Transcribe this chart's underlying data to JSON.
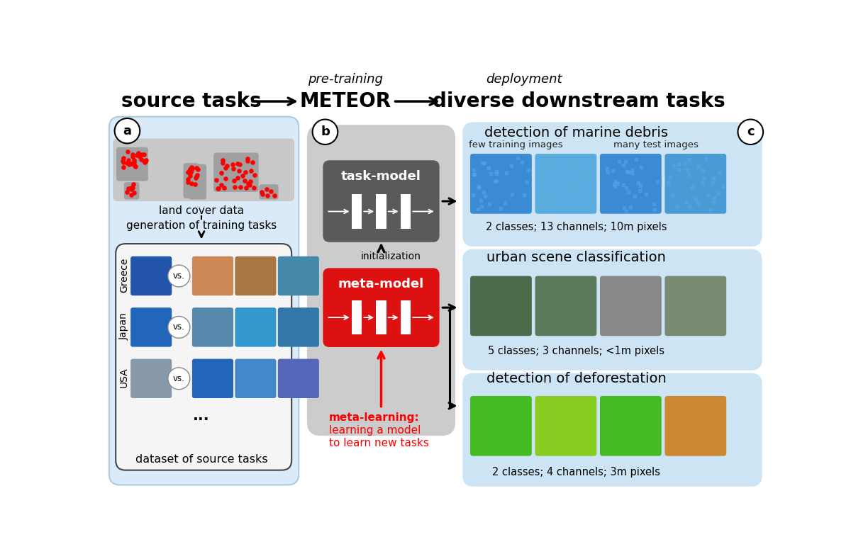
{
  "bg_color": "#ffffff",
  "panel_a_bg": "#daeaf8",
  "panel_a_edge": "#aaccdd",
  "panel_b_bg": "#cccccc",
  "panel_c1_bg": "#cce4f4",
  "panel_c2_bg": "#cce4f4",
  "panel_c3_bg": "#cce4f4",
  "task_model_bg": "#5a5a5a",
  "meta_model_bg": "#dd1111",
  "map_bg": "#c8c8c8",
  "map_land": "#a0a0a0",
  "inner_box_bg": "#f5f5f5",
  "inner_box_edge": "#444444",
  "header_pretrain": "pre-training",
  "header_deploy": "deployment",
  "header_source": "source tasks",
  "header_meteor": "METEOR",
  "header_diverse": "diverse downstream tasks",
  "label_a": "a",
  "label_b": "b",
  "label_c": "c",
  "land_cover_label": "land cover data",
  "generation_label": "generation of training tasks",
  "dataset_label": "dataset of source tasks",
  "country_labels": [
    "Greece",
    "Japan",
    "USA"
  ],
  "vs_label": "vs.",
  "dots_label": "...",
  "task_model_label": "task-model",
  "meta_model_label": "meta-model",
  "init_label": "initialization",
  "ml_label1": "meta-learning:",
  "ml_label2": "learning a model",
  "ml_label3": "to learn new tasks",
  "c1_title": "detection of marine debris",
  "c1_sub1": "few training images",
  "c1_sub2": "many test images",
  "c1_desc": "2 classes; 13 channels; 10m pixels",
  "c2_title": "urban scene classification",
  "c2_desc": "5 classes; 3 channels; <1m pixels",
  "c3_title": "detection of deforestation",
  "c3_desc": "2 classes; 4 channels; 3m pixels",
  "debris_colors": [
    "#3a8bd4",
    "#5aacde",
    "#3a8bd4",
    "#4a9bd4"
  ],
  "urban_colors": [
    "#4a6a4a",
    "#5a7a5a",
    "#888888",
    "#7a8a72"
  ],
  "defor_colors": [
    "#44bb22",
    "#88cc22",
    "#44bb22",
    "#cc8833"
  ],
  "greece_img_colors": [
    "#2255aa",
    "#cc8855",
    "#aa7744",
    "#4488aa"
  ],
  "japan_img_colors": [
    "#2266bb",
    "#5588aa",
    "#3399cc",
    "#3377aa"
  ],
  "usa_img_colors": [
    "#8899aa",
    "#2266bb",
    "#4488cc",
    "#5566bb"
  ]
}
